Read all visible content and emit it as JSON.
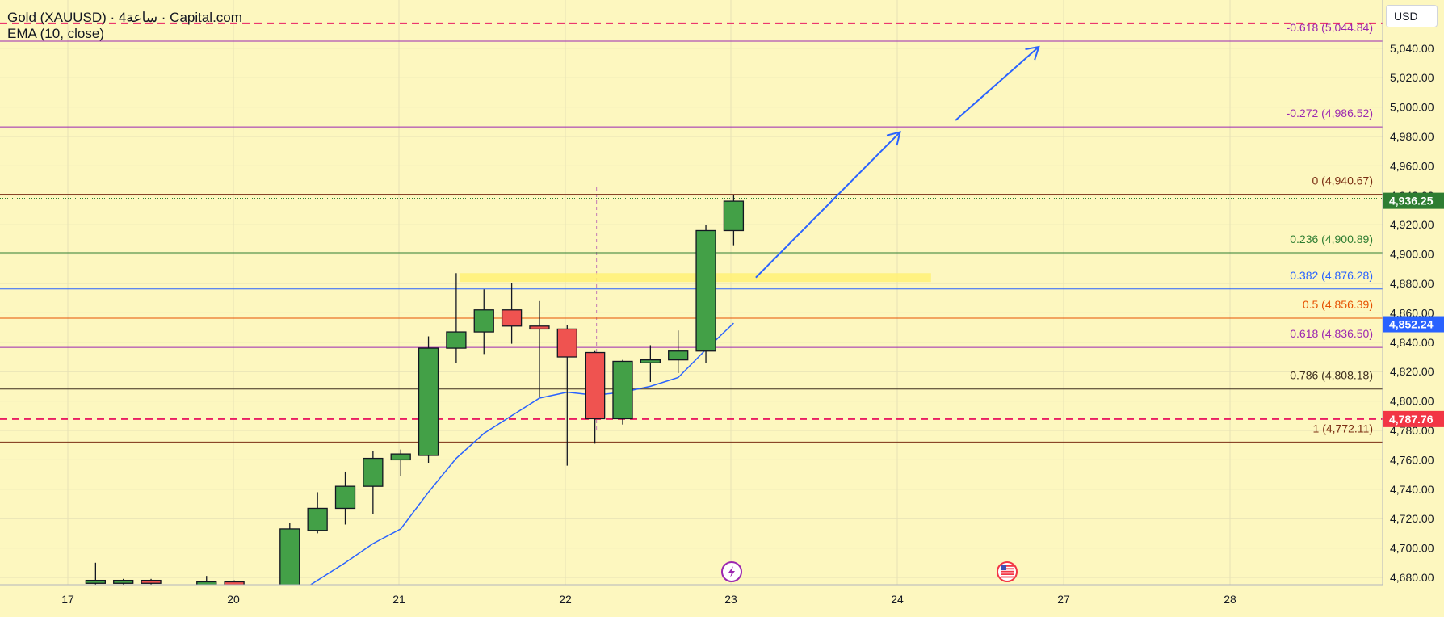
{
  "legend": {
    "title": "Gold (XAUUSD) · 4ساعة · Capital.com",
    "indicator": "EMA (10, close)"
  },
  "currency_button": "USD",
  "icons": [
    "lightning-event-icon",
    "us-flag-icon"
  ],
  "chart_data": {
    "type": "candlestick",
    "instrument": "Gold (XAUUSD)",
    "timeframe": "4ساعة",
    "source": "Capital.com",
    "currency": "USD",
    "y_range": [
      4672,
      5059
    ],
    "y_ticks": [
      "4,680.00",
      "4,700.00",
      "4,720.00",
      "4,740.00",
      "4,760.00",
      "4,780.00",
      "4,800.00",
      "4,820.00",
      "4,840.00",
      "4,860.00",
      "4,880.00",
      "4,900.00",
      "4,920.00",
      "4,940.00",
      "4,960.00",
      "4,980.00",
      "5,000.00",
      "5,020.00",
      "5,040.00"
    ],
    "x_labels": [
      "17",
      "20",
      "21",
      "22",
      "23",
      "24",
      "27",
      "28"
    ],
    "candles": [
      {
        "i": 1,
        "o": 4678,
        "h": 4690,
        "l": 4670,
        "c": 4676,
        "color": "green"
      },
      {
        "i": 2,
        "o": 4678,
        "h": 4679,
        "l": 4674,
        "c": 4676,
        "color": "green"
      },
      {
        "i": 3,
        "o": 4678,
        "h": 4679,
        "l": 4674,
        "c": 4676,
        "color": "red"
      },
      {
        "i": 5,
        "o": 4675,
        "h": 4681,
        "l": 4673,
        "c": 4677,
        "color": "green"
      },
      {
        "i": 6,
        "o": 4677,
        "h": 4678,
        "l": 4673,
        "c": 4675,
        "color": "red"
      },
      {
        "i": 8,
        "o": 4670,
        "h": 4717,
        "l": 4668,
        "c": 4713,
        "color": "green"
      },
      {
        "i": 9,
        "o": 4712,
        "h": 4738,
        "l": 4710,
        "c": 4727,
        "color": "green"
      },
      {
        "i": 10,
        "o": 4727,
        "h": 4752,
        "l": 4716,
        "c": 4742,
        "color": "green"
      },
      {
        "i": 11,
        "o": 4742,
        "h": 4766,
        "l": 4723,
        "c": 4761,
        "color": "green"
      },
      {
        "i": 12,
        "o": 4760,
        "h": 4767,
        "l": 4749,
        "c": 4764,
        "color": "green"
      },
      {
        "i": 13,
        "o": 4763,
        "h": 4844,
        "l": 4758,
        "c": 4836,
        "color": "green"
      },
      {
        "i": 14,
        "o": 4836,
        "h": 4887,
        "l": 4826,
        "c": 4847,
        "color": "green"
      },
      {
        "i": 15,
        "o": 4847,
        "h": 4876,
        "l": 4832,
        "c": 4862,
        "color": "green"
      },
      {
        "i": 16,
        "o": 4862,
        "h": 4880,
        "l": 4839,
        "c": 4851,
        "color": "red"
      },
      {
        "i": 17,
        "o": 4851,
        "h": 4868,
        "l": 4803,
        "c": 4849,
        "color": "red"
      },
      {
        "i": 18,
        "o": 4849,
        "h": 4852,
        "l": 4756,
        "c": 4830,
        "color": "red"
      },
      {
        "i": 19,
        "o": 4833,
        "h": 4834,
        "l": 4771,
        "c": 4788,
        "color": "red"
      },
      {
        "i": 20,
        "o": 4788,
        "h": 4828,
        "l": 4784,
        "c": 4827,
        "color": "green"
      },
      {
        "i": 21,
        "o": 4826,
        "h": 4838,
        "l": 4813,
        "c": 4828,
        "color": "green"
      },
      {
        "i": 22,
        "o": 4828,
        "h": 4848,
        "l": 4819,
        "c": 4834,
        "color": "green"
      },
      {
        "i": 23,
        "o": 4834,
        "h": 4920,
        "l": 4826,
        "c": 4916,
        "color": "green"
      },
      {
        "i": 24,
        "o": 4916,
        "h": 4940,
        "l": 4906,
        "c": 4936,
        "color": "green"
      }
    ],
    "ema": {
      "name": "EMA (10, close)",
      "points": [
        [
          8,
          4666
        ],
        [
          9,
          4678
        ],
        [
          10,
          4690
        ],
        [
          11,
          4703
        ],
        [
          12,
          4713
        ],
        [
          13,
          4738
        ],
        [
          14,
          4761
        ],
        [
          15,
          4778
        ],
        [
          16,
          4790
        ],
        [
          17,
          4802
        ],
        [
          18,
          4806
        ],
        [
          19,
          4804
        ],
        [
          20,
          4806
        ],
        [
          21,
          4810
        ],
        [
          22,
          4816
        ],
        [
          23,
          4835
        ],
        [
          24,
          4853
        ]
      ]
    },
    "fibonacci": [
      {
        "label": "-0.618 (5,044.84)",
        "value": 5044.84,
        "color": "#9c27b0"
      },
      {
        "label": "-0.272 (4,986.52)",
        "value": 4986.52,
        "color": "#9c27b0"
      },
      {
        "label": "0 (4,940.67)",
        "value": 4940.67,
        "color": "#7a2d12"
      },
      {
        "label": "0.236 (4,900.89)",
        "value": 4900.89,
        "color": "#2e7d32"
      },
      {
        "label": "0.382 (4,876.28)",
        "value": 4876.28,
        "color": "#2962ff"
      },
      {
        "label": "0.5 (4,856.39)",
        "value": 4856.39,
        "color": "#e65100"
      },
      {
        "label": "0.618 (4,836.50)",
        "value": 4836.5,
        "color": "#9c27b0"
      },
      {
        "label": "0.786 (4,808.18)",
        "value": 4808.18,
        "color": "#3e2f1e"
      },
      {
        "label": "1 (4,772.11)",
        "value": 4772.11,
        "color": "#7a2d12"
      }
    ],
    "horizontal_lines": [
      {
        "value": 5057,
        "color": "#e91e63",
        "style": "dashed"
      },
      {
        "value": 4787.76,
        "color": "#e91e63",
        "style": "dashed"
      }
    ],
    "zone": {
      "from_i": 14,
      "to_i": 31,
      "low": 4881,
      "high": 4887,
      "color": "#fff176"
    },
    "arrows": [
      {
        "from": [
          24.8,
          4884
        ],
        "to": [
          30,
          4983
        ]
      },
      {
        "from": [
          32,
          4991
        ],
        "to": [
          35,
          5041
        ]
      }
    ],
    "price_tags": [
      {
        "text": "4,936.25",
        "value": 4936.25,
        "color": "#2e7d32"
      },
      {
        "text": "4,852.24",
        "value": 4852.24,
        "color": "#2962ff"
      },
      {
        "text": "4,787.76",
        "value": 4787.76,
        "color": "#f23645"
      }
    ],
    "current_price_line": 4938,
    "crosshair_i": 19
  }
}
